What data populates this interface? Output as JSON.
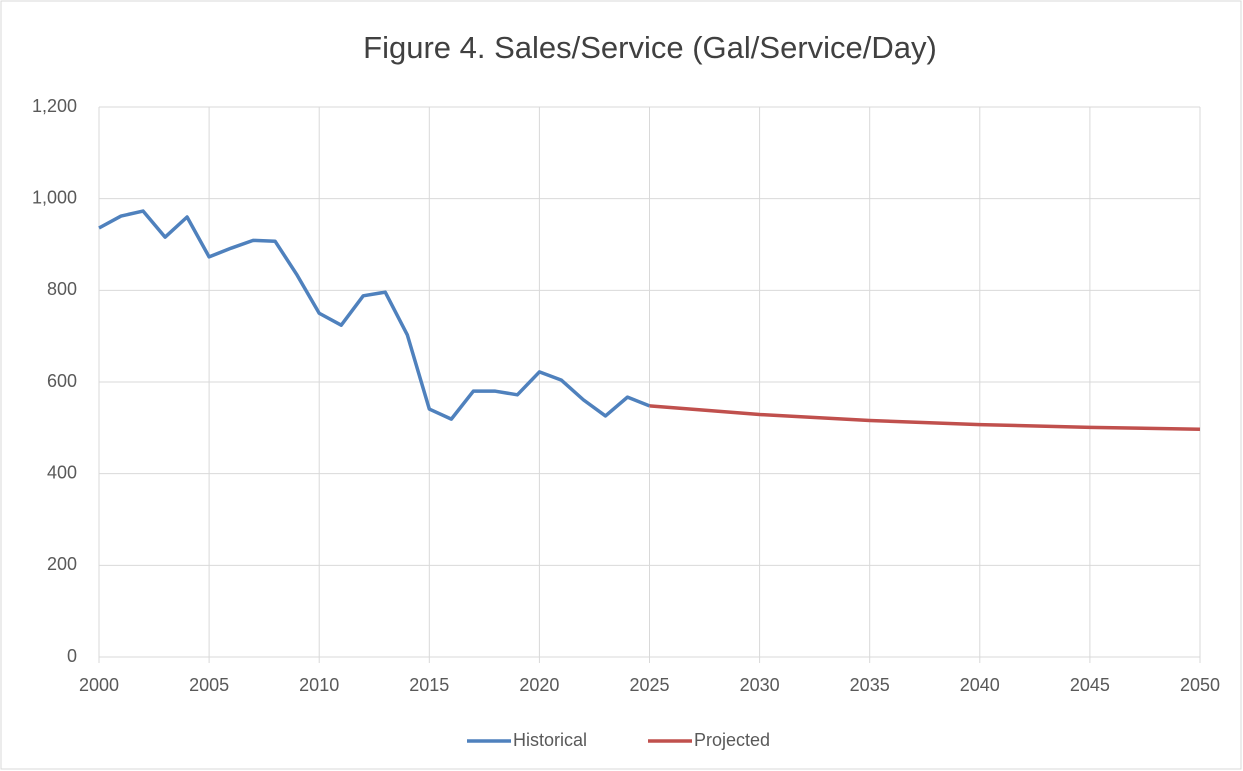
{
  "chart_data": {
    "type": "line",
    "title": "Figure 4. Sales/Service (Gal/Service/Day)",
    "series": [
      {
        "name": "Historical",
        "color": "#4f81bd",
        "x": [
          2000,
          2001,
          2002,
          2003,
          2004,
          2005,
          2006,
          2007,
          2008,
          2009,
          2010,
          2011,
          2012,
          2013,
          2014,
          2015,
          2016,
          2017,
          2018,
          2019,
          2020,
          2021,
          2022,
          2023,
          2024,
          2025
        ],
        "values": [
          936,
          962,
          973,
          916,
          960,
          873,
          892,
          909,
          907,
          833,
          750,
          724,
          788,
          796,
          703,
          541,
          519,
          580,
          580,
          572,
          622,
          604,
          561,
          526,
          567,
          548
        ]
      },
      {
        "name": "Projected",
        "color": "#c0504d",
        "x": [
          2025,
          2030,
          2035,
          2040,
          2045,
          2050
        ],
        "values": [
          548,
          529,
          516,
          507,
          501,
          497
        ]
      }
    ],
    "xlim": [
      2000,
      2050
    ],
    "xticks": [
      2000,
      2005,
      2010,
      2015,
      2020,
      2025,
      2030,
      2035,
      2040,
      2045,
      2050
    ],
    "ylim": [
      0,
      1200
    ],
    "yticks": [
      0,
      200,
      400,
      600,
      800,
      {
        "value": 1000,
        "label": "1,000"
      },
      {
        "value": 1200,
        "label": "1,200"
      }
    ],
    "grid": true,
    "legend": "bottom"
  }
}
